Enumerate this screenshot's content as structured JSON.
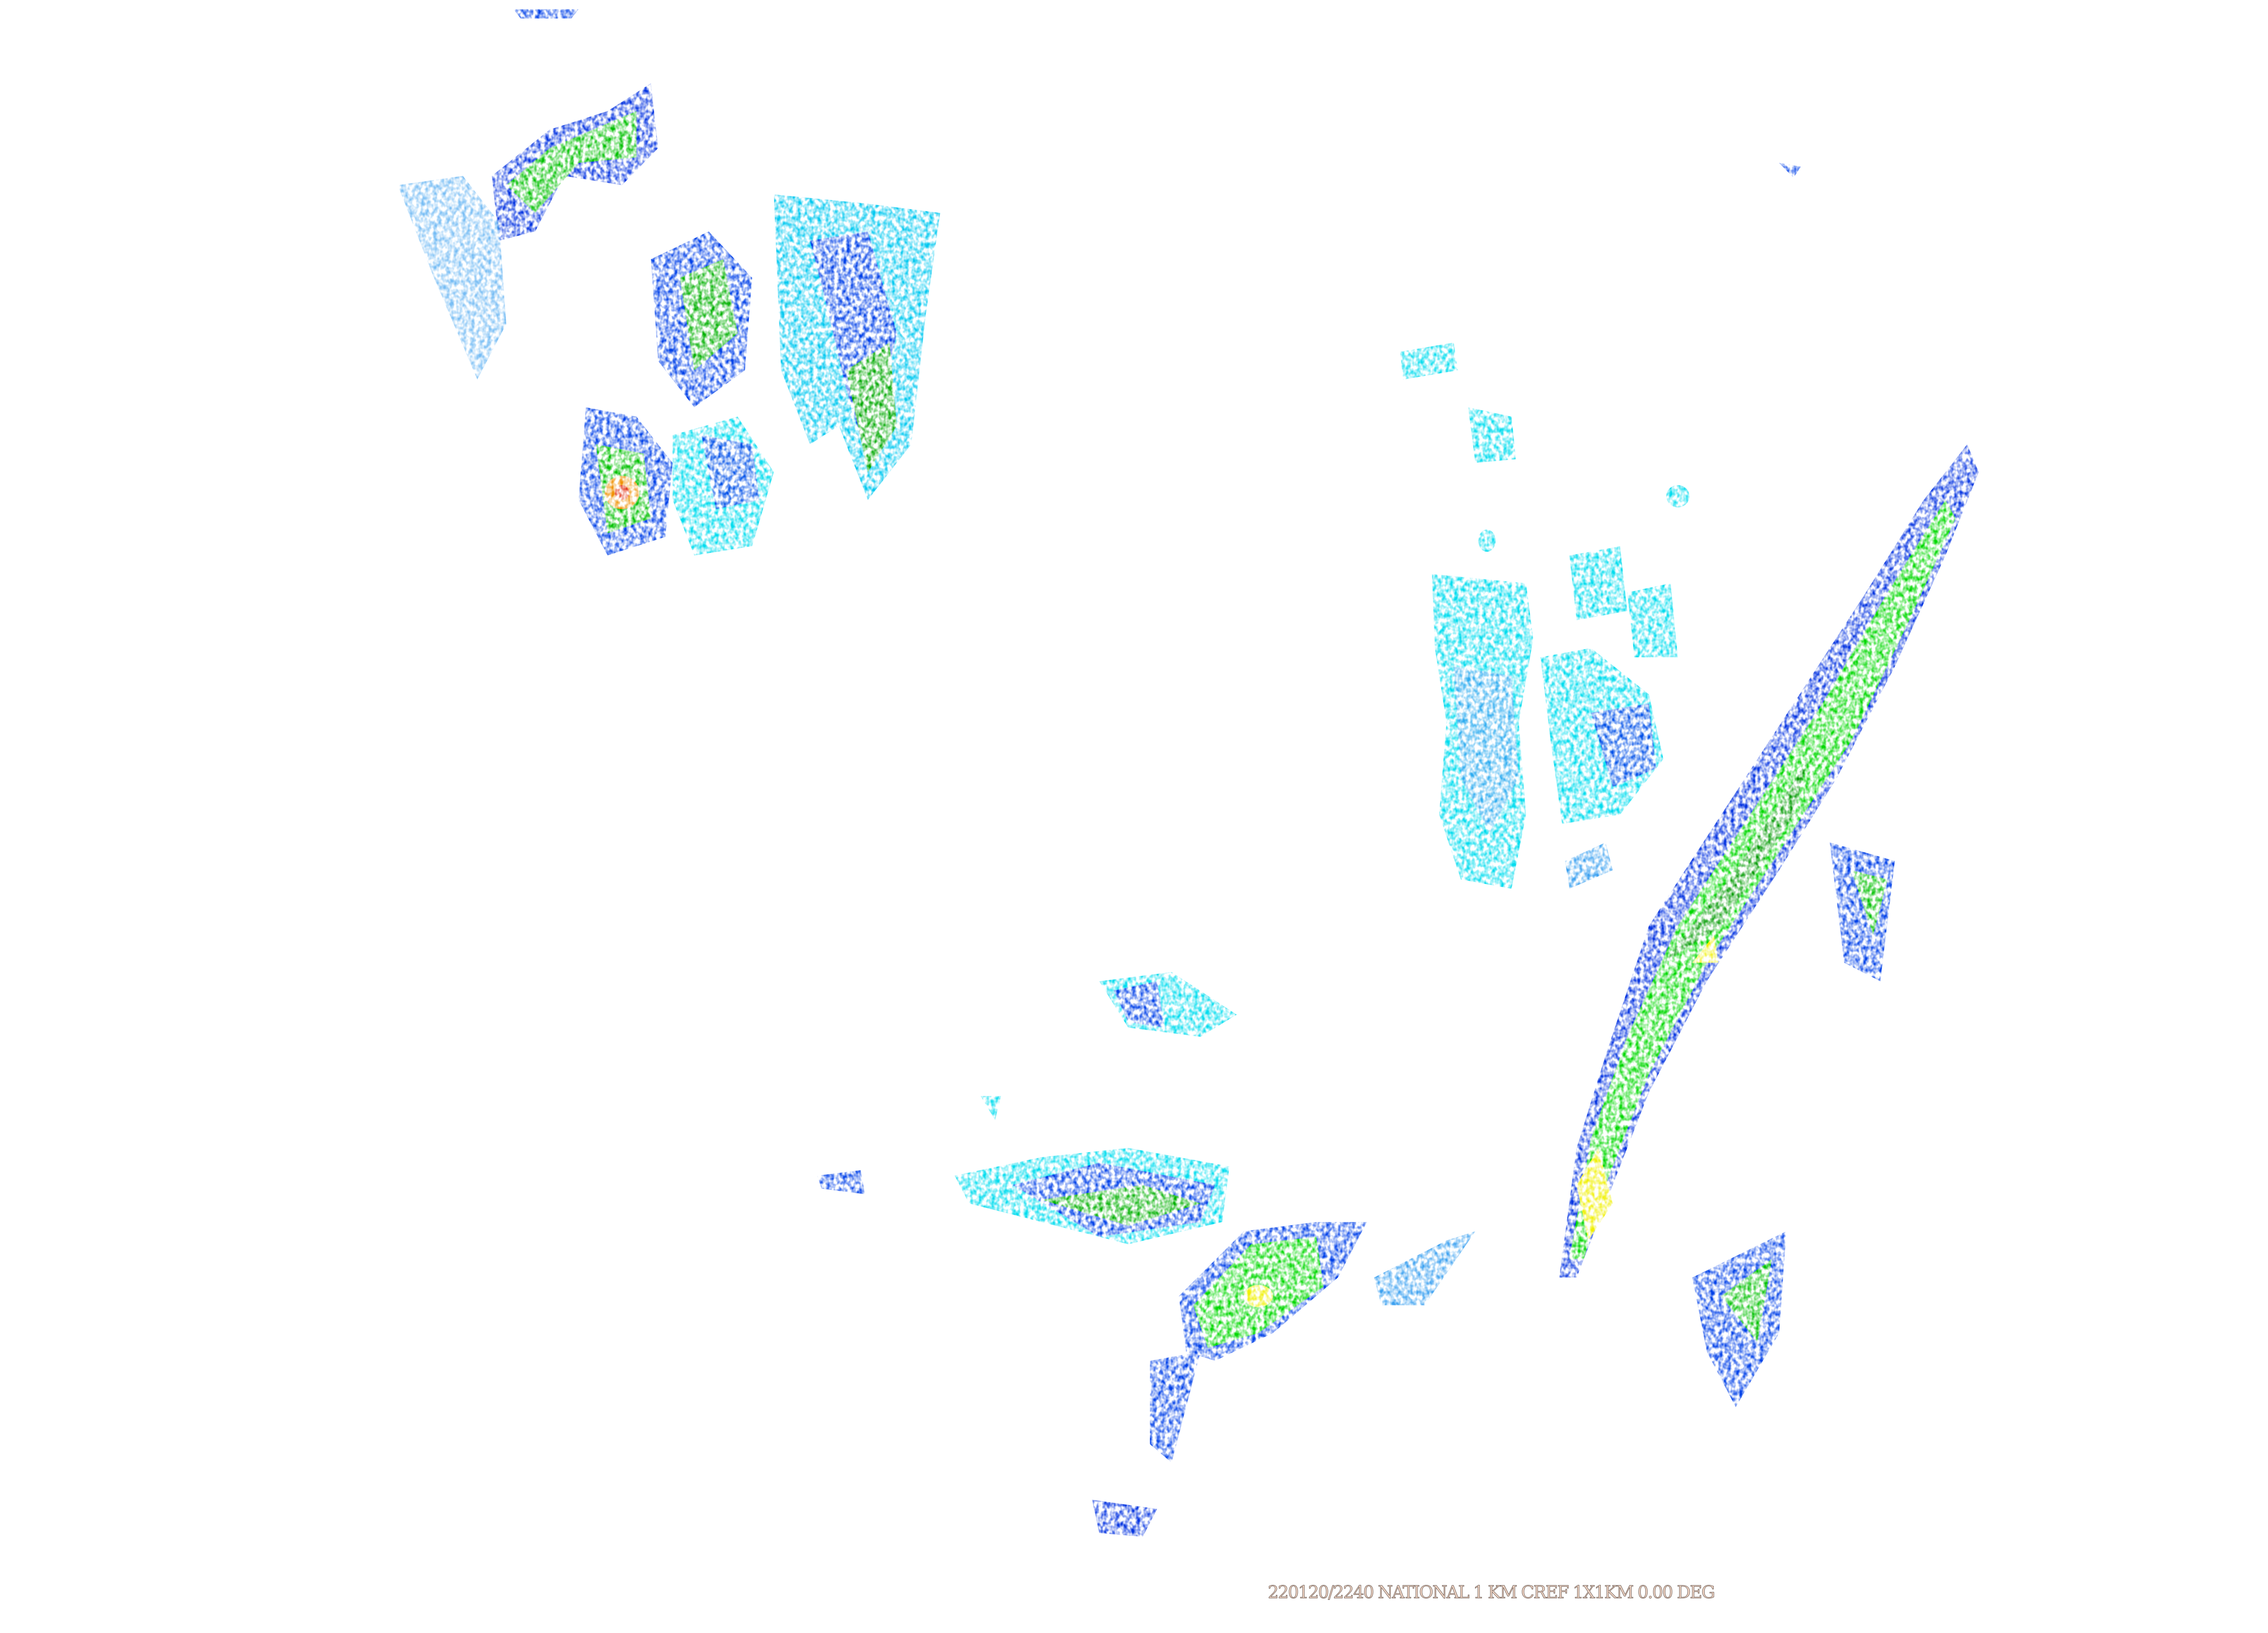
{
  "caption": "220120/2240 NATIONAL 1 KM CREF 1X1KM 0.00 DEG",
  "product": {
    "type": "composite reflectivity radar mosaic",
    "background": "#ffffff"
  },
  "colors": {
    "light_cyan": "#9ef0f8",
    "cyan": "#00dcee",
    "light_blue": "#3aa0f0",
    "blue": "#0030e0",
    "green": "#00d800",
    "dark_green": "#009a00",
    "yellow": "#f0f000",
    "orange": "#f09000",
    "red": "#e02000"
  }
}
